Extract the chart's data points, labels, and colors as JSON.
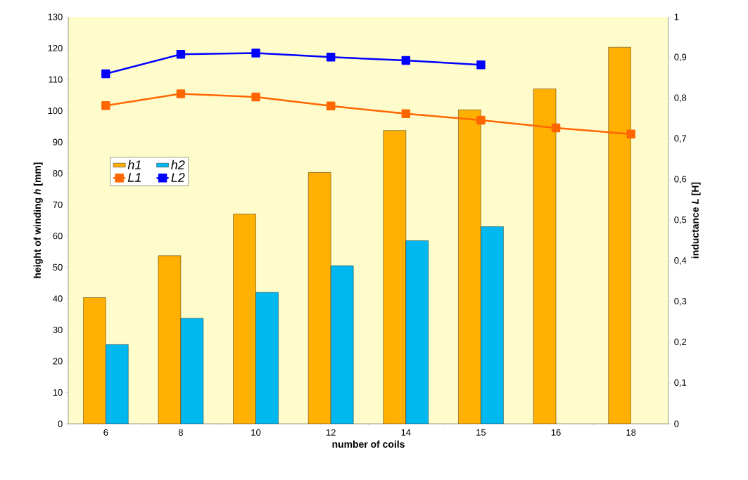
{
  "chart_data": {
    "type": "bar",
    "xlabel": "number of coils",
    "ylabel": "height of winding *h* [mm]",
    "y2label": "inductance *L* [H]",
    "categories": [
      "6",
      "8",
      "10",
      "12",
      "14",
      "15",
      "16",
      "18"
    ],
    "series": [
      {
        "name": "h1",
        "color": "#ffb000",
        "values": [
          40.3,
          53.7,
          67,
          80.3,
          93.7,
          100.3,
          107,
          120.3
        ]
      },
      {
        "name": "h2",
        "color": "#00b8f0",
        "values": [
          25.3,
          33.7,
          42,
          50.5,
          58.5,
          63,
          null,
          null
        ]
      },
      {
        "name": "L1",
        "type": "line",
        "axis": "y2",
        "color": "#ff6600",
        "values": [
          0.782,
          0.811,
          0.803,
          0.781,
          0.762,
          0.746,
          0.727,
          0.712
        ]
      },
      {
        "name": "L2",
        "type": "line",
        "axis": "y2",
        "color": "#0000ff",
        "values": [
          0.86,
          0.908,
          0.911,
          0.901,
          0.893,
          0.882,
          null,
          null
        ]
      }
    ],
    "ylim": [
      0,
      130
    ],
    "yticks": [
      0,
      10,
      20,
      30,
      40,
      50,
      60,
      70,
      80,
      90,
      100,
      110,
      120,
      130
    ],
    "y2lim": [
      0,
      1
    ],
    "y2ticks": [
      0,
      {
        "value": 0.1,
        "label": "0,1"
      },
      {
        "value": 0.2,
        "label": "0,2"
      },
      {
        "value": 0.3,
        "label": "0,3"
      },
      {
        "value": 0.4,
        "label": "0,4"
      },
      {
        "value": 0.5,
        "label": "0,5"
      },
      {
        "value": 0.6,
        "label": "0,6"
      },
      {
        "value": 0.7,
        "label": "0,7"
      },
      {
        "value": 0.8,
        "label": "0,8"
      },
      {
        "value": 0.9,
        "label": "0,9"
      },
      1
    ],
    "legend": "left",
    "marker": "square",
    "grid": false
  }
}
